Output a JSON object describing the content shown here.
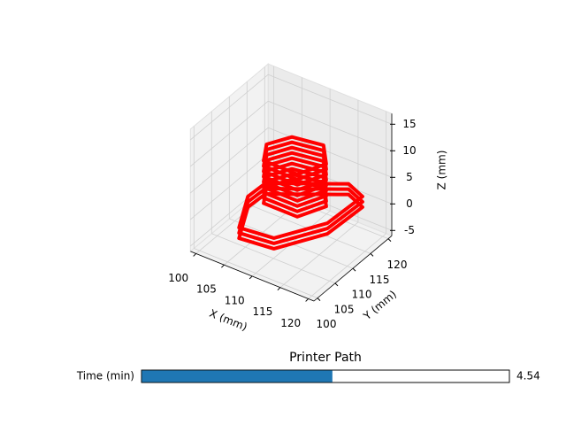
{
  "chart_data": {
    "type": "line3d",
    "color": "#ff0000",
    "xlabel": "X (mm)",
    "ylabel": "Y (mm)",
    "zlabel": "Z (mm)",
    "xlim": [
      99,
      121
    ],
    "ylim": [
      99,
      121
    ],
    "zlim": [
      -6,
      17
    ],
    "xticks": [
      100,
      105,
      110,
      115,
      120
    ],
    "yticks": [
      100,
      105,
      110,
      115,
      120
    ],
    "zticks": [
      -5,
      0,
      5,
      10,
      15
    ],
    "grid": true,
    "series": [
      {
        "x": [
          106.4,
          112.1,
          116.4,
          116.8,
          113.3,
          103.2,
          103.0,
          106.4
        ],
        "y": [
          101.0,
          101.8,
          110.1,
          119.4,
          121.0,
          113.5,
          108.9,
          101.0
        ],
        "z": [
          -1.5,
          -1.5,
          -1.5,
          -1.5,
          -1.5,
          -1.5,
          -1.5,
          -1.5
        ]
      },
      {
        "x": [
          106.4,
          112.1,
          116.4,
          116.8,
          113.3,
          103.2,
          103.0,
          106.4
        ],
        "y": [
          101.0,
          101.8,
          110.1,
          119.4,
          121.0,
          113.5,
          108.9,
          101.0
        ],
        "z": [
          -0.5,
          -0.5,
          -0.5,
          -0.5,
          -0.5,
          -0.5,
          -0.5,
          -0.5
        ]
      },
      {
        "x": [
          106.4,
          112.1,
          116.4,
          116.8,
          113.3,
          103.2,
          103.0,
          106.4
        ],
        "y": [
          101.0,
          101.8,
          110.1,
          119.4,
          121.0,
          113.5,
          108.9,
          101.0
        ],
        "z": [
          0.5,
          0.5,
          0.5,
          0.5,
          0.5,
          0.5,
          0.5,
          0.5
        ]
      },
      {
        "x": [
          107,
          113,
          115,
          112,
          107,
          105,
          107
        ],
        "y": [
          107,
          107,
          112,
          116,
          115,
          111,
          107
        ],
        "z": [
          2,
          2,
          2,
          2,
          2,
          2,
          2
        ]
      },
      {
        "x": [
          107,
          113,
          115,
          112,
          107,
          105,
          107
        ],
        "y": [
          107,
          107,
          112,
          116,
          115,
          111,
          107
        ],
        "z": [
          3,
          3,
          3,
          3,
          3,
          3,
          3
        ]
      },
      {
        "x": [
          107,
          113,
          115,
          112,
          107,
          105,
          107
        ],
        "y": [
          107,
          107,
          112,
          116,
          115,
          111,
          107
        ],
        "z": [
          4,
          4,
          4,
          4,
          4,
          4,
          4
        ]
      },
      {
        "x": [
          107,
          113,
          115,
          112,
          107,
          105,
          107
        ],
        "y": [
          107,
          107,
          112,
          116,
          115,
          111,
          107
        ],
        "z": [
          5,
          5,
          5,
          5,
          5,
          5,
          5
        ]
      },
      {
        "x": [
          107,
          113,
          115,
          112,
          107,
          105,
          107
        ],
        "y": [
          107,
          107,
          112,
          116,
          115,
          111,
          107
        ],
        "z": [
          6,
          6,
          6,
          6,
          6,
          6,
          6
        ]
      },
      {
        "x": [
          107,
          113,
          115,
          112,
          107,
          105,
          107
        ],
        "y": [
          107,
          107,
          112,
          116,
          115,
          111,
          107
        ],
        "z": [
          7,
          7,
          7,
          7,
          7,
          7,
          7
        ]
      },
      {
        "x": [
          107,
          113,
          115,
          112,
          107,
          105,
          107
        ],
        "y": [
          107,
          107,
          112,
          116,
          115,
          111,
          107
        ],
        "z": [
          8,
          8,
          8,
          8,
          8,
          8,
          8
        ]
      },
      {
        "x": [
          107,
          113,
          115,
          112,
          107,
          105,
          107
        ],
        "y": [
          107,
          107,
          112,
          116,
          115,
          111,
          107
        ],
        "z": [
          9,
          9,
          9,
          9,
          9,
          9,
          9
        ]
      },
      {
        "x": [
          107,
          113,
          115,
          112,
          107,
          105,
          107
        ],
        "y": [
          107,
          107,
          112,
          116,
          115,
          111,
          107
        ],
        "z": [
          10,
          10,
          10,
          10,
          10,
          10,
          10
        ]
      }
    ],
    "slider": {
      "title": "Printer Path",
      "label": "Time (min)",
      "value": 4.54,
      "min": 0,
      "max": 8.75,
      "color": "#1f77b4"
    }
  }
}
